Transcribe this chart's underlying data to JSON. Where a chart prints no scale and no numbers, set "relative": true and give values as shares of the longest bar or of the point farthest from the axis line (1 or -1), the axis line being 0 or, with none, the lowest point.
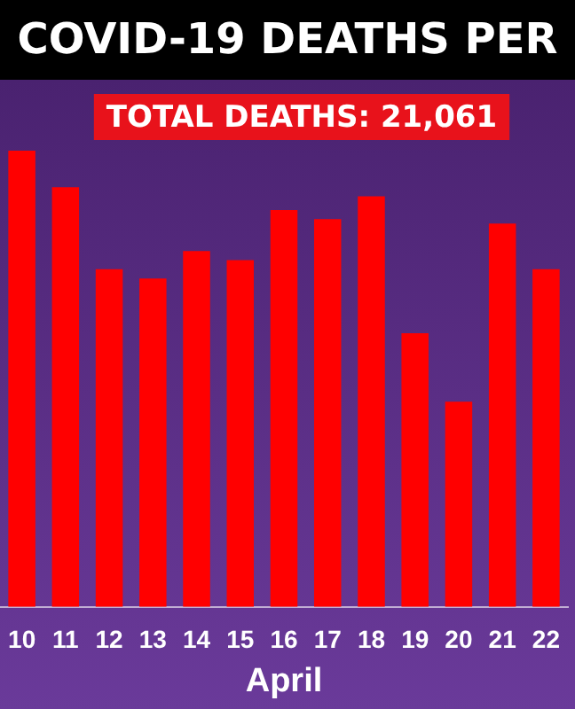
{
  "chart_data": {
    "type": "bar",
    "title": "COVID-19 DEATHS PER",
    "xlabel": "April",
    "annotations": [
      "TOTAL DEATHS: 21,061"
    ],
    "relative": true,
    "categories": [
      "10",
      "11",
      "12",
      "13",
      "14",
      "15",
      "16",
      "17",
      "18",
      "19",
      "20",
      "21",
      "22"
    ],
    "values": [
      1,
      0.92,
      0.74,
      0.72,
      0.78,
      0.76,
      0.87,
      0.85,
      0.9,
      0.6,
      0.45,
      0.84,
      0.74
    ],
    "color": "#ff0000"
  }
}
